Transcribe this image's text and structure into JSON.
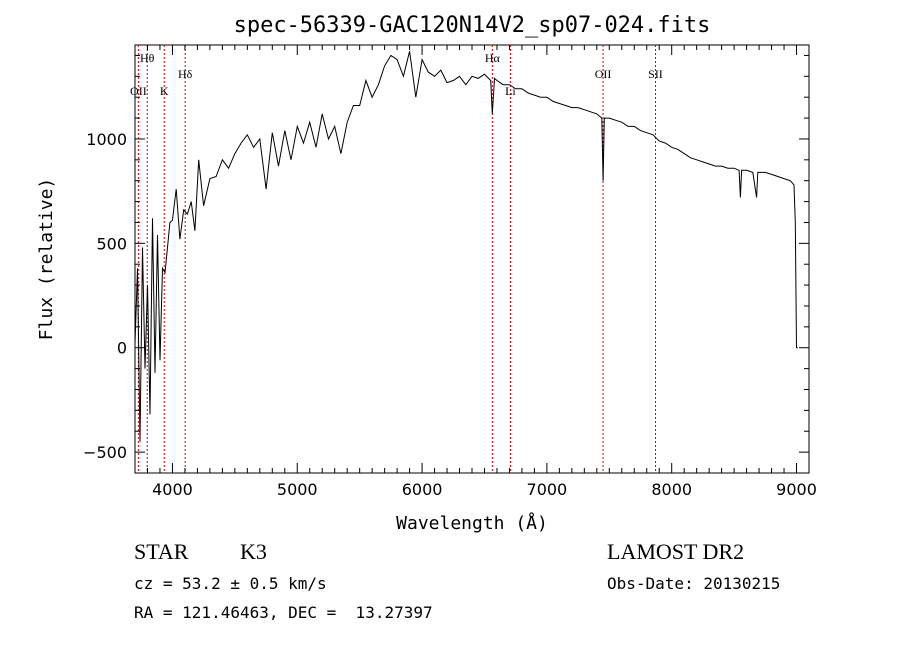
{
  "chart_data": {
    "type": "line",
    "title": "spec-56339-GAC120N14V2_sp07-024.fits",
    "xlabel": "Wavelength (Å)",
    "ylabel": "Flux (relative)",
    "xlim": [
      3700,
      9100
    ],
    "ylim": [
      -600,
      1450
    ],
    "x_ticks": [
      4000,
      5000,
      6000,
      7000,
      8000,
      9000
    ],
    "y_ticks": [
      -500,
      0,
      500,
      1000
    ],
    "grid": false,
    "line_color": "#000000",
    "marker_color": "#cc0000",
    "spectral_lines": [
      {
        "label": "Hθ",
        "wavelength": 3798,
        "row": "top"
      },
      {
        "label": "OII",
        "wavelength": 3727,
        "row": "low"
      },
      {
        "label": "K",
        "wavelength": 3934,
        "row": "low"
      },
      {
        "label": "Hδ",
        "wavelength": 4102,
        "row": "mid"
      },
      {
        "label": "Hα",
        "wavelength": 6563,
        "row": "top"
      },
      {
        "label": "Li",
        "wavelength": 6708,
        "row": "low"
      },
      {
        "label": "OII",
        "wavelength": 7450,
        "row": "mid"
      },
      {
        "label": "SII",
        "wavelength": 7870,
        "row": "mid"
      }
    ],
    "series": [
      {
        "x": [
          3700,
          3720,
          3740,
          3760,
          3780,
          3800,
          3820,
          3840,
          3860,
          3880,
          3900,
          3920,
          3940,
          3960,
          3980,
          4000,
          4030,
          4060,
          4090,
          4120,
          4150,
          4180,
          4210,
          4250,
          4300,
          4350,
          4400,
          4450,
          4500,
          4550,
          4600,
          4650,
          4700,
          4750,
          4800,
          4850,
          4900,
          4950,
          5000,
          5050,
          5100,
          5150,
          5200,
          5250,
          5300,
          5350,
          5400,
          5450,
          5500,
          5550,
          5600,
          5650,
          5700,
          5750,
          5800,
          5850,
          5900,
          5950,
          6000,
          6050,
          6100,
          6150,
          6200,
          6250,
          6300,
          6350,
          6400,
          6450,
          6500,
          6550,
          6563,
          6580,
          6600,
          6650,
          6700,
          6750,
          6800,
          6850,
          6900,
          6950,
          7000,
          7050,
          7100,
          7150,
          7200,
          7250,
          7300,
          7350,
          7400,
          7440,
          7450,
          7460,
          7500,
          7550,
          7600,
          7650,
          7700,
          7750,
          7800,
          7850,
          7900,
          7950,
          8000,
          8050,
          8100,
          8150,
          8200,
          8250,
          8300,
          8350,
          8400,
          8450,
          8500,
          8540,
          8550,
          8560,
          8600,
          8650,
          8680,
          8690,
          8700,
          8750,
          8800,
          8850,
          8900,
          8950,
          8980,
          8990,
          9000,
          9010
        ],
        "y": [
          20,
          380,
          -450,
          480,
          -100,
          300,
          -320,
          620,
          -120,
          540,
          -60,
          380,
          360,
          480,
          600,
          610,
          760,
          520,
          660,
          640,
          700,
          560,
          900,
          680,
          810,
          820,
          900,
          860,
          930,
          980,
          1020,
          960,
          1000,
          760,
          1030,
          870,
          1040,
          900,
          1060,
          980,
          1080,
          960,
          1120,
          1000,
          1060,
          930,
          1080,
          1160,
          1160,
          1280,
          1200,
          1260,
          1350,
          1400,
          1380,
          1300,
          1420,
          1200,
          1380,
          1320,
          1300,
          1330,
          1270,
          1280,
          1300,
          1260,
          1300,
          1290,
          1310,
          1280,
          1120,
          1290,
          1280,
          1260,
          1260,
          1240,
          1240,
          1220,
          1210,
          1200,
          1200,
          1180,
          1170,
          1160,
          1150,
          1150,
          1140,
          1130,
          1120,
          1100,
          800,
          1100,
          1100,
          1090,
          1080,
          1060,
          1060,
          1040,
          1030,
          1020,
          990,
          980,
          960,
          950,
          930,
          910,
          900,
          890,
          880,
          870,
          870,
          860,
          860,
          850,
          720,
          850,
          850,
          840,
          720,
          840,
          840,
          840,
          830,
          820,
          810,
          800,
          780,
          600,
          0,
          0
        ]
      }
    ]
  },
  "footer": {
    "object_type": "STAR",
    "subclass": "K3",
    "survey": "LAMOST DR2",
    "cz": "cz = 53.2 ± 0.5 km/s",
    "obs_date": "Obs-Date: 20130215",
    "coords": "RA = 121.46463, DEC =  13.27397"
  }
}
